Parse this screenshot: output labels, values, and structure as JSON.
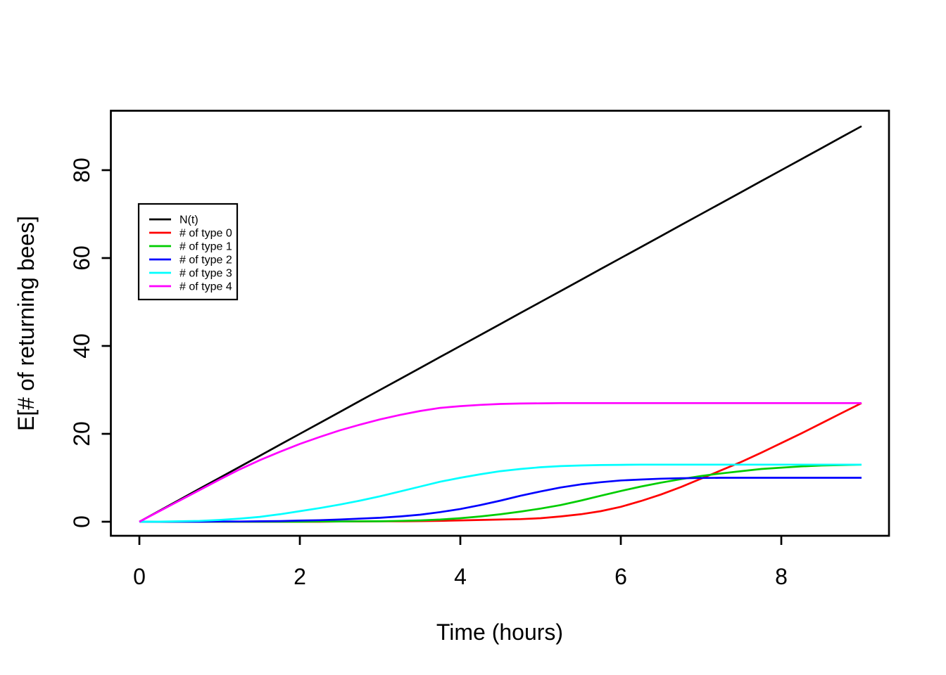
{
  "figure": {
    "background": "#ffffff",
    "border_color": "#000000"
  },
  "chart_data": {
    "type": "line",
    "title": "",
    "xlabel": "Time (hours)",
    "ylabel": "E[# of returning bees]",
    "xlim": [
      0,
      9
    ],
    "ylim": [
      0,
      90
    ],
    "xticks": [
      0,
      2,
      4,
      6,
      8
    ],
    "yticks": [
      0,
      20,
      40,
      60,
      80
    ],
    "grid": false,
    "legend": {
      "position": "upper-left-inside",
      "entries": [
        "N(t)",
        "# of type 0",
        "# of type 1",
        "# of type 2",
        "# of type 3",
        "# of type 4"
      ]
    },
    "x": [
      0,
      0.25,
      0.5,
      0.75,
      1,
      1.25,
      1.5,
      1.75,
      2,
      2.25,
      2.5,
      2.75,
      3,
      3.25,
      3.5,
      3.75,
      4,
      4.25,
      4.5,
      4.75,
      5,
      5.25,
      5.5,
      5.75,
      6,
      6.25,
      6.5,
      6.75,
      7,
      7.25,
      7.5,
      7.75,
      8,
      8.25,
      8.5,
      8.75,
      9
    ],
    "series": [
      {
        "name": "N(t)",
        "color": "#000000",
        "values": [
          0,
          2.5,
          5,
          7.5,
          10,
          12.5,
          15,
          17.5,
          20,
          22.5,
          25,
          27.5,
          30,
          32.5,
          35,
          37.5,
          40,
          42.5,
          45,
          47.5,
          50,
          52.5,
          55,
          57.5,
          60,
          62.5,
          65,
          67.5,
          70,
          72.5,
          75,
          77.5,
          80,
          82.5,
          85,
          87.5,
          90
        ]
      },
      {
        "name": "# of type 0",
        "color": "#FF0000",
        "values": [
          0,
          0,
          0,
          0,
          0,
          0,
          0,
          0,
          0,
          0,
          0.05,
          0.05,
          0.1,
          0.1,
          0.15,
          0.2,
          0.3,
          0.4,
          0.5,
          0.6,
          0.8,
          1.2,
          1.7,
          2.4,
          3.4,
          4.7,
          6.2,
          7.9,
          9.8,
          11.7,
          13.6,
          15.7,
          17.9,
          20.1,
          22.4,
          24.7,
          27
        ]
      },
      {
        "name": "# of type 1",
        "color": "#00CD00",
        "values": [
          0,
          0,
          0,
          0,
          0,
          0,
          0,
          0,
          0,
          0.05,
          0.05,
          0.1,
          0.1,
          0.2,
          0.3,
          0.5,
          0.8,
          1.2,
          1.7,
          2.3,
          3,
          3.8,
          4.8,
          5.9,
          7,
          8,
          8.9,
          9.7,
          10.4,
          11,
          11.5,
          12,
          12.3,
          12.6,
          12.8,
          12.9,
          13
        ]
      },
      {
        "name": "# of type 2",
        "color": "#0000FF",
        "values": [
          0,
          0,
          0,
          0,
          0.05,
          0.05,
          0.1,
          0.15,
          0.25,
          0.35,
          0.5,
          0.7,
          0.9,
          1.2,
          1.6,
          2.2,
          2.9,
          3.8,
          4.8,
          5.9,
          6.9,
          7.8,
          8.5,
          9,
          9.4,
          9.6,
          9.8,
          9.9,
          9.95,
          10,
          10,
          10,
          10,
          10,
          10,
          10,
          10
        ]
      },
      {
        "name": "# of type 3",
        "color": "#00FFFF",
        "values": [
          0,
          0.02,
          0.1,
          0.2,
          0.4,
          0.7,
          1.1,
          1.7,
          2.4,
          3.1,
          3.9,
          4.8,
          5.8,
          6.9,
          8,
          9.1,
          10,
          10.8,
          11.5,
          12,
          12.4,
          12.65,
          12.8,
          12.9,
          12.95,
          13,
          13,
          13,
          13,
          13,
          13,
          13,
          13,
          13,
          13,
          13,
          13
        ]
      },
      {
        "name": "# of type 4",
        "color": "#FF00FF",
        "values": [
          0,
          2.4,
          4.8,
          7.2,
          9.6,
          11.9,
          14,
          15.9,
          17.7,
          19.3,
          20.8,
          22.1,
          23.3,
          24.3,
          25.2,
          25.9,
          26.3,
          26.6,
          26.8,
          26.9,
          26.95,
          27,
          27,
          27,
          27,
          27,
          27,
          27,
          27,
          27,
          27,
          27,
          27,
          27,
          27,
          27,
          27
        ]
      }
    ]
  }
}
